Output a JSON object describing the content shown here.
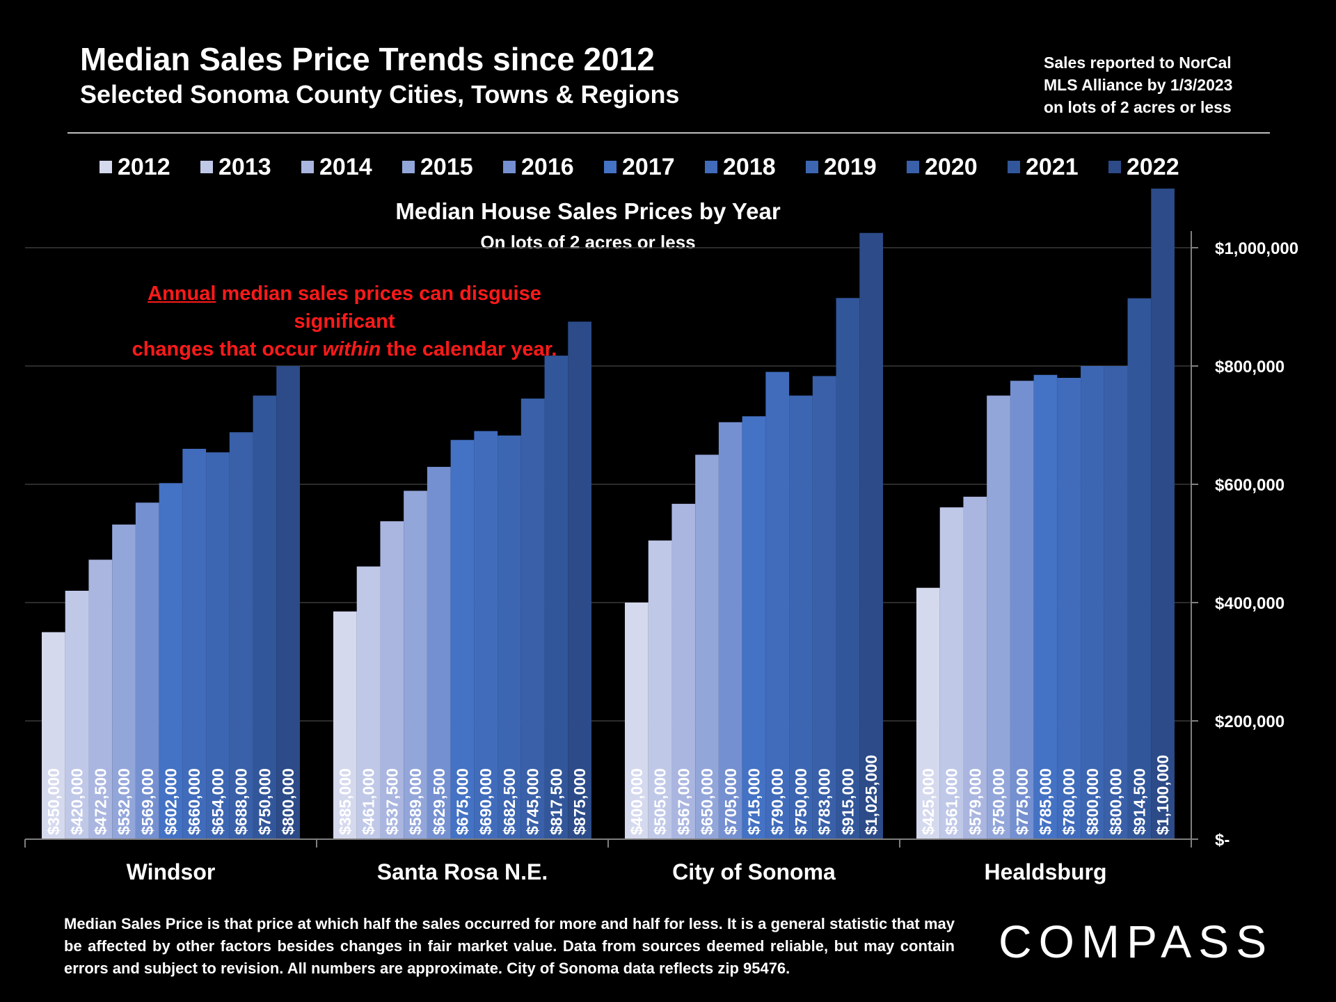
{
  "header": {
    "title": "Median Sales Price Trends since 2012",
    "subtitle": "Selected Sonoma County Cities, Towns & Regions",
    "source_lines": [
      "Sales reported to NorCal",
      "MLS Alliance by 1/3/2023",
      "on lots of 2 acres or less"
    ]
  },
  "annotation": {
    "underlined": "Annual",
    "line1_rest": " median sales prices can disguise significant",
    "line2_before": "changes that occur ",
    "line2_italic": "within",
    "line2_after": " the calendar year."
  },
  "footnote": "Median Sales Price is that price at which half the sales occurred for more and half for less. It is a general statistic that may be affected by other factors besides changes in fair market value. Data from sources deemed reliable, but may contain errors and subject to revision.  All numbers are approximate. City of Sonoma data reflects zip 95476.",
  "logo": "COMPASS",
  "chart_data": {
    "type": "bar",
    "title": "Median House Sales Prices by Year",
    "subtitle": "On lots of 2 acres or less",
    "categories": [
      "Windsor",
      "Santa Rosa N.E.",
      "City of Sonoma",
      "Healdsburg"
    ],
    "ylim": [
      0,
      1100000
    ],
    "y_ticks": [
      0,
      200000,
      400000,
      600000,
      800000,
      1000000
    ],
    "y_tick_labels": [
      "$-",
      "$200,000",
      "$400,000",
      "$600,000",
      "$800,000",
      "$1,000,000"
    ],
    "y_axis_side": "right",
    "gridlines": true,
    "legend_position": "top",
    "series": [
      {
        "name": "2012",
        "color": "#d5d9ee",
        "values": [
          350000,
          385000,
          400000,
          425000
        ],
        "labels": [
          "$350,000",
          "$385,000",
          "$400,000",
          "$425,000"
        ]
      },
      {
        "name": "2013",
        "color": "#c0c8e8",
        "values": [
          420000,
          461000,
          505000,
          561000
        ],
        "labels": [
          "$420,000",
          "$461,000",
          "$505,000",
          "$561,000"
        ]
      },
      {
        "name": "2014",
        "color": "#aab6e0",
        "values": [
          472500,
          537500,
          567000,
          579000
        ],
        "labels": [
          "$472,500",
          "$537,500",
          "$567,000",
          "$579,000"
        ]
      },
      {
        "name": "2015",
        "color": "#93a6da",
        "values": [
          532000,
          589000,
          650000,
          750000
        ],
        "labels": [
          "$532,000",
          "$589,000",
          "$650,000",
          "$750,000"
        ]
      },
      {
        "name": "2016",
        "color": "#7590d0",
        "values": [
          569000,
          629500,
          705000,
          775000
        ],
        "labels": [
          "$569,000",
          "$629,500",
          "$705,000",
          "$775,000"
        ]
      },
      {
        "name": "2017",
        "color": "#4472c4",
        "values": [
          602000,
          675000,
          715000,
          785000
        ],
        "labels": [
          "$602,000",
          "$675,000",
          "$715,000",
          "$785,000"
        ]
      },
      {
        "name": "2018",
        "color": "#416cbc",
        "values": [
          660000,
          690000,
          790000,
          780000
        ],
        "labels": [
          "$660,000",
          "$690,000",
          "$790,000",
          "$780,000"
        ]
      },
      {
        "name": "2019",
        "color": "#3d66b2",
        "values": [
          654000,
          682500,
          750000,
          800000
        ],
        "labels": [
          "$654,000",
          "$682,500",
          "$750,000",
          "$800,000"
        ]
      },
      {
        "name": "2020",
        "color": "#3960a8",
        "values": [
          688000,
          745000,
          783000,
          800000
        ],
        "labels": [
          "$688,000",
          "$745,000",
          "$783,000",
          "$800,000"
        ]
      },
      {
        "name": "2021",
        "color": "#32569a",
        "values": [
          750000,
          817500,
          915000,
          914500
        ],
        "labels": [
          "$750,000",
          "$817,500",
          "$915,000",
          "$914,500"
        ]
      },
      {
        "name": "2022",
        "color": "#2c4b88",
        "values": [
          800000,
          875000,
          1025000,
          1100000
        ],
        "labels": [
          "$800,000",
          "$875,000",
          "$1,025,000",
          "$1,100,000"
        ]
      }
    ]
  }
}
